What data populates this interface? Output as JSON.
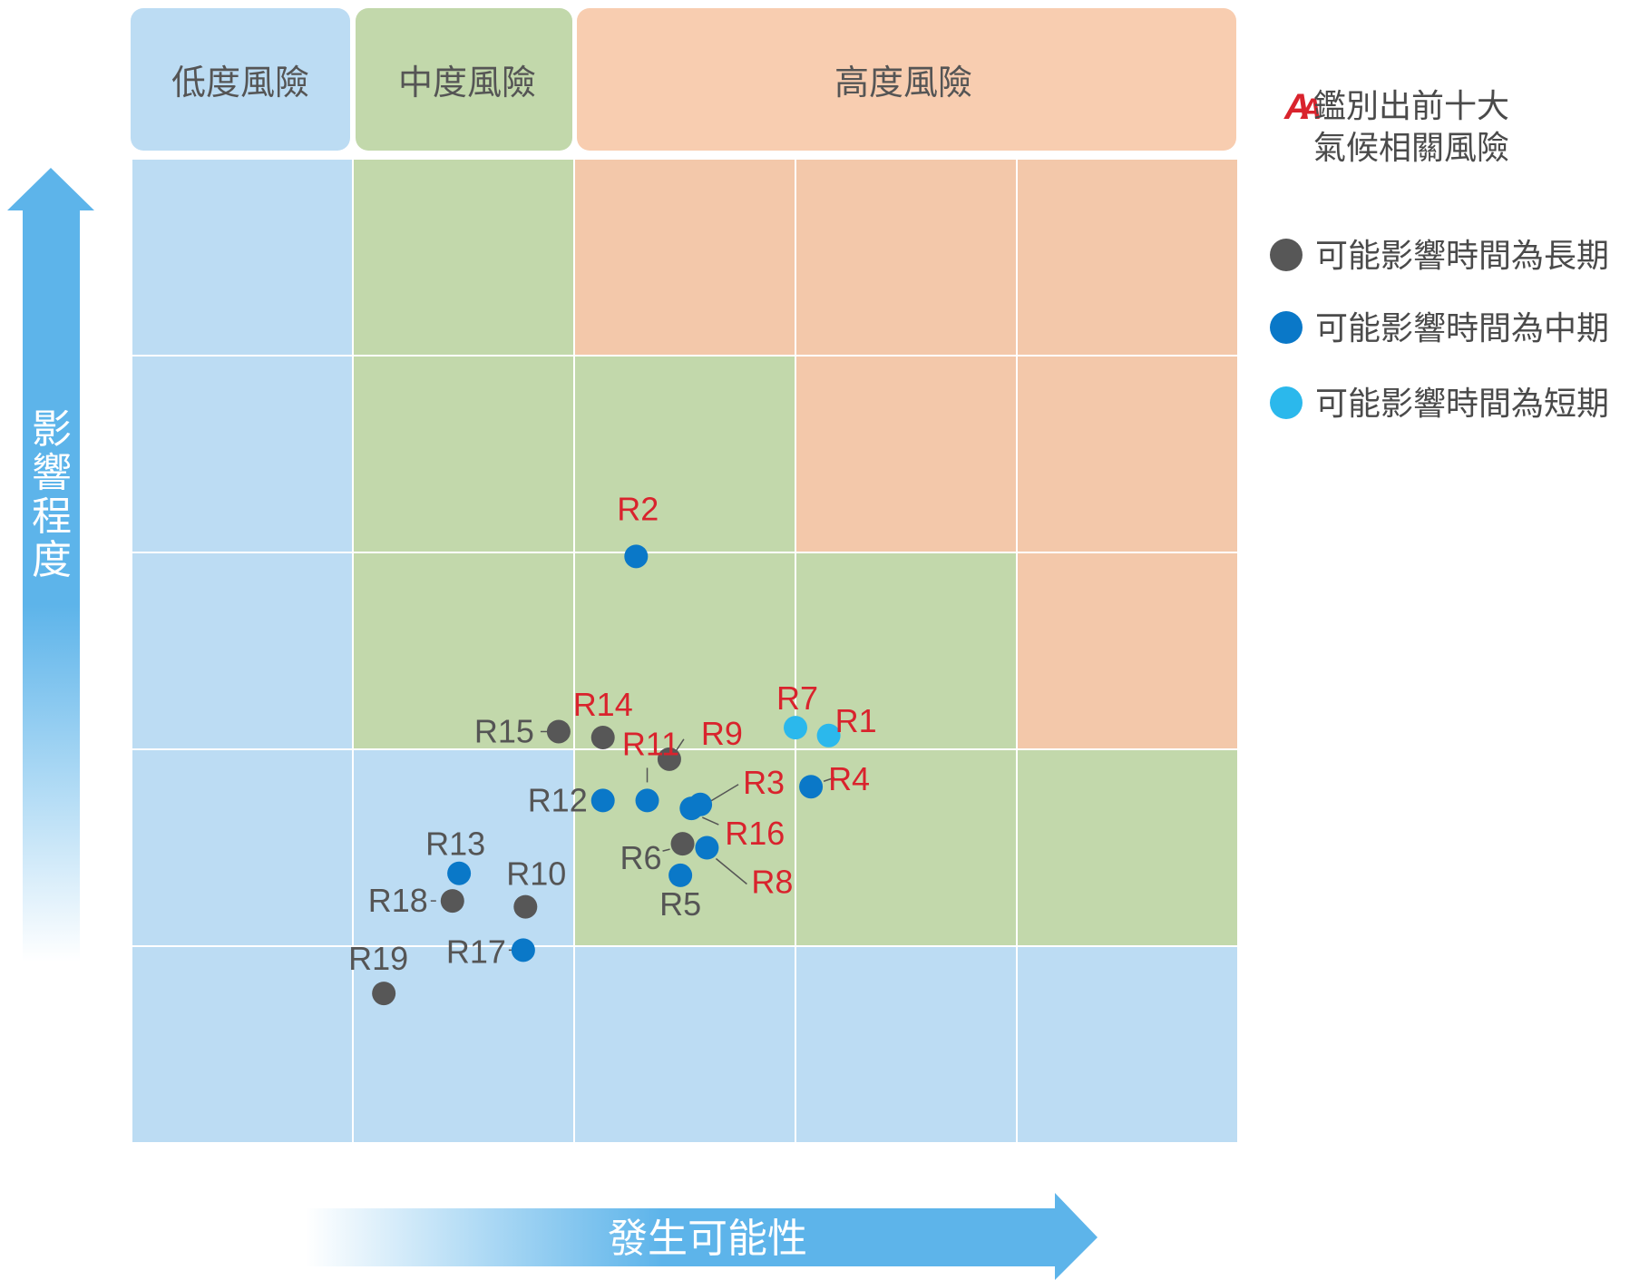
{
  "chart_data": {
    "type": "scatter",
    "xlabel": "發生可能性",
    "ylabel": "影響程度",
    "grid": true,
    "zones": [
      {
        "label": "低度風險",
        "color": "#bcdcf3"
      },
      {
        "label": "中度風險",
        "color": "#c2d8ab"
      },
      {
        "label": "高度風險",
        "color": "#f8cdb0"
      }
    ],
    "grid_colors": {
      "low": "#bcdcf3",
      "medium": "#c2d8ab",
      "high": "#f3c8aa"
    },
    "legend": {
      "top10_marker": "A",
      "top10_text": [
        "鑑別出前十大",
        "氣候相關風險"
      ],
      "items": [
        {
          "label": "可能影響時間為長期",
          "color": "#575757"
        },
        {
          "label": "可能影響時間為中期",
          "color": "#0a78c8"
        },
        {
          "label": "可能影響時間為短期",
          "color": "#2bb8ec"
        }
      ]
    },
    "label_colors": {
      "top10": "#d9232d",
      "other": "#555555"
    },
    "points": [
      {
        "label": "R1",
        "x": 3.65,
        "y": 2.57,
        "term": "short",
        "top10": true
      },
      {
        "label": "R2",
        "x": 2.78,
        "y": 3.48,
        "term": "medium",
        "top10": true
      },
      {
        "label": "R3",
        "x": 3.07,
        "y": 2.22,
        "term": "medium",
        "top10": true
      },
      {
        "label": "R4",
        "x": 3.57,
        "y": 2.31,
        "term": "medium",
        "top10": true
      },
      {
        "label": "R5",
        "x": 2.98,
        "y": 1.86,
        "term": "medium",
        "top10": false
      },
      {
        "label": "R6",
        "x": 2.99,
        "y": 2.02,
        "term": "long",
        "top10": false
      },
      {
        "label": "R7",
        "x": 3.5,
        "y": 2.61,
        "term": "short",
        "top10": true
      },
      {
        "label": "R8",
        "x": 3.1,
        "y": 2.0,
        "term": "medium",
        "top10": true
      },
      {
        "label": "R9",
        "x": 2.93,
        "y": 2.45,
        "term": "long",
        "top10": true
      },
      {
        "label": "R10",
        "x": 2.28,
        "y": 1.7,
        "term": "long",
        "top10": false
      },
      {
        "label": "R11",
        "x": 2.83,
        "y": 2.24,
        "term": "medium",
        "top10": true
      },
      {
        "label": "R12",
        "x": 2.63,
        "y": 2.24,
        "term": "medium",
        "top10": false
      },
      {
        "label": "R13",
        "x": 1.98,
        "y": 1.87,
        "term": "medium",
        "top10": false
      },
      {
        "label": "R14",
        "x": 2.63,
        "y": 2.56,
        "term": "long",
        "top10": true
      },
      {
        "label": "R15",
        "x": 2.43,
        "y": 2.59,
        "term": "long",
        "top10": false
      },
      {
        "label": "R16",
        "x": 3.03,
        "y": 2.2,
        "term": "medium",
        "top10": true
      },
      {
        "label": "R17",
        "x": 2.27,
        "y": 1.48,
        "term": "medium",
        "top10": false
      },
      {
        "label": "R18",
        "x": 1.95,
        "y": 1.73,
        "term": "long",
        "top10": false
      },
      {
        "label": "R19",
        "x": 1.64,
        "y": 1.26,
        "term": "long",
        "top10": false
      }
    ]
  }
}
